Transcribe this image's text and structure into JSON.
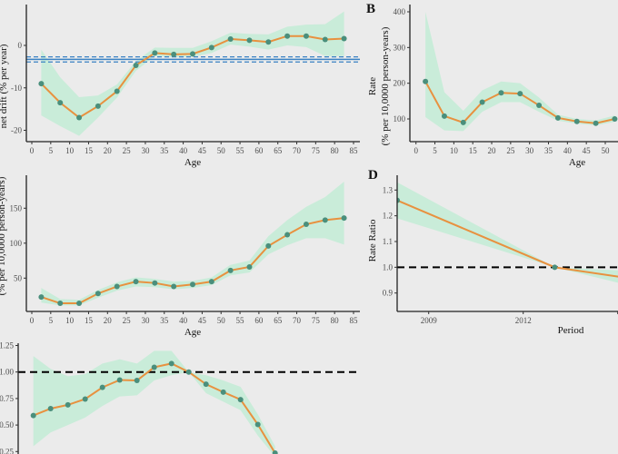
{
  "colors": {
    "line": "#e8913f",
    "point": "#4a8f7c",
    "ribbon": "#c9ecd9",
    "drift": "#3b82c4",
    "reference": "#000000",
    "background": "#ebebeb"
  },
  "chart_data": [
    {
      "panel": "A",
      "type": "line",
      "xlabel": "Age",
      "ylabel": "net drift (% per year)",
      "xticks": [
        0,
        5,
        10,
        15,
        20,
        25,
        30,
        35,
        40,
        45,
        50,
        55,
        60,
        65,
        70,
        75,
        80,
        85
      ],
      "yticks": [
        0,
        -10,
        -20
      ],
      "x": [
        2.5,
        7.5,
        12.5,
        17.5,
        22.5,
        27.5,
        32.5,
        37.5,
        42.5,
        47.5,
        52.5,
        57.5,
        62.5,
        67.5,
        72.5,
        77.5,
        82.5
      ],
      "values": [
        -9,
        -13.5,
        -17,
        -14.3,
        -10.8,
        -4.7,
        -1.8,
        -2.1,
        -2.0,
        -0.5,
        1.5,
        1.2,
        0.8,
        2.2,
        2.2,
        1.4,
        1.6
      ],
      "lower": [
        -16.5,
        -19,
        -21.3,
        -17,
        -12.3,
        -6,
        -2.5,
        -2.8,
        -2.7,
        -1.8,
        0.2,
        -0.3,
        -1,
        0,
        -0.4,
        -2.5,
        -2.5
      ],
      "upper": [
        -1,
        -7.5,
        -12.2,
        -11.8,
        -9.2,
        -3.7,
        -0.5,
        -0.6,
        -0.6,
        1,
        3,
        2.7,
        2.6,
        4.4,
        4.9,
        5.0,
        8.0
      ],
      "net_drift": {
        "value": -3.3,
        "lower": -3.9,
        "upper": -2.7
      }
    },
    {
      "panel": "B",
      "type": "line",
      "xlabel": "Age",
      "ylabel": "Rate",
      "ylabel2": "(% per 10,0000 person-years)",
      "xticks": [
        0,
        5,
        10,
        15,
        20,
        25,
        30,
        35,
        40,
        45,
        50
      ],
      "yticks": [
        100,
        200,
        300,
        400
      ],
      "x": [
        2.5,
        7.5,
        12.5,
        17.5,
        22.5,
        27.5,
        32.5,
        37.5,
        42.5,
        47.5,
        52.5
      ],
      "values": [
        205,
        108,
        90,
        147,
        173,
        171,
        138,
        103,
        93,
        88,
        100
      ],
      "lower": [
        105,
        68,
        66,
        120,
        147,
        147,
        120,
        95,
        87,
        82,
        92
      ],
      "upper": [
        400,
        175,
        123,
        180,
        205,
        200,
        160,
        112,
        100,
        96,
        110
      ]
    },
    {
      "panel": "C",
      "type": "line",
      "xlabel": "Age",
      "ylabel": "(% per 10,0000 person-years)",
      "xticks": [
        0,
        5,
        10,
        15,
        20,
        25,
        30,
        35,
        40,
        45,
        50,
        55,
        60,
        65,
        70,
        75,
        80,
        85
      ],
      "yticks": [
        50,
        100,
        150
      ],
      "x": [
        2.5,
        7.5,
        12.5,
        17.5,
        22.5,
        27.5,
        32.5,
        37.5,
        42.5,
        47.5,
        52.5,
        57.5,
        62.5,
        67.5,
        72.5,
        77.5,
        82.5
      ],
      "values": [
        23,
        14,
        14,
        28,
        38,
        45,
        43,
        38,
        41,
        45,
        61,
        66,
        96,
        112,
        127,
        133,
        136
      ],
      "lower": [
        15,
        11,
        11,
        22,
        32,
        38,
        37,
        34,
        36,
        40,
        54,
        58,
        84,
        97,
        107,
        107,
        98
      ],
      "upper": [
        36,
        20,
        19,
        33,
        44,
        51,
        49,
        45,
        46,
        51,
        69,
        75,
        110,
        133,
        152,
        166,
        188
      ]
    },
    {
      "panel": "D",
      "type": "line",
      "xlabel": "Period",
      "ylabel": "Rate Ratio",
      "xticks": [
        "2009",
        "2012",
        "20"
      ],
      "yticks": [
        0.9,
        1.0,
        1.1,
        1.2,
        1.3
      ],
      "x": [
        2008,
        2013,
        2018
      ],
      "values": [
        1.26,
        1.0,
        0.91
      ],
      "lower": [
        1.19,
        1.0,
        0.85
      ],
      "upper": [
        1.33,
        1.0,
        0.97
      ],
      "reference": 1.0
    },
    {
      "panel": "E",
      "type": "line",
      "yticks": [
        0.25,
        0.5,
        0.75,
        1.0,
        1.25
      ],
      "ytick_labels": [
        "0.25",
        "0.50",
        "0.75",
        "1.00",
        "1.25"
      ],
      "values": [
        0.59,
        0.655,
        0.69,
        0.745,
        0.855,
        0.925,
        0.92,
        1.045,
        1.08,
        1.0,
        0.885,
        0.81,
        0.74,
        0.505,
        0.235
      ],
      "lower": [
        0.3,
        0.43,
        0.5,
        0.57,
        0.68,
        0.77,
        0.78,
        0.92,
        0.97,
        1.0,
        0.8,
        0.72,
        0.64,
        0.4,
        0.2
      ],
      "upper": [
        1.15,
        1.03,
        0.96,
        0.98,
        1.08,
        1.12,
        1.08,
        1.2,
        1.2,
        1.0,
        0.97,
        0.92,
        0.86,
        0.6,
        0.3
      ],
      "reference": 1.0
    }
  ]
}
